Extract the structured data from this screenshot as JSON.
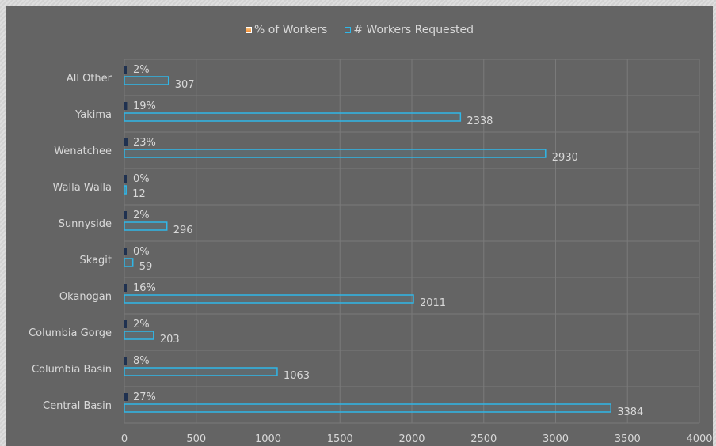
{
  "chart_data": {
    "type": "bar",
    "orientation": "horizontal",
    "categories": [
      "All Other",
      "Yakima",
      "Wenatchee",
      "Walla Walla",
      "Sunnyside",
      "Skagit",
      "Okanogan",
      "Columbia Gorge",
      "Columbia Basin",
      "Central Basin"
    ],
    "series": [
      {
        "name": "% of Workers",
        "values": [
          2,
          19,
          23,
          0,
          2,
          0,
          16,
          2,
          8,
          27
        ],
        "labels": [
          "2%",
          "19%",
          "23%",
          "0%",
          "2%",
          "0%",
          "16%",
          "2%",
          "8%",
          "27%"
        ]
      },
      {
        "name": "# Workers Requested",
        "values": [
          307,
          2338,
          2930,
          12,
          296,
          59,
          2011,
          203,
          1063,
          3384
        ],
        "labels": [
          "307",
          "2338",
          "2930",
          "12",
          "296",
          "59",
          "2011",
          "203",
          "1063",
          "3384"
        ]
      }
    ],
    "xlim": [
      0,
      4000
    ],
    "xticks": [
      0,
      500,
      1000,
      1500,
      2000,
      2500,
      3000,
      3500,
      4000
    ],
    "xtick_labels": [
      "0",
      "500",
      "1000",
      "1500",
      "2000",
      "2500",
      "3000",
      "3500",
      "4000"
    ],
    "grid": true,
    "legend_position": "top",
    "colors": {
      "background": "#646464",
      "gridline": "#7a7a7a",
      "text": "#d9d9d9",
      "requested_outline": "#2fb7e8",
      "percent_mark": "#1f3150"
    }
  },
  "legend": {
    "pct_label": "% of Workers",
    "req_label": "# Workers Requested"
  }
}
